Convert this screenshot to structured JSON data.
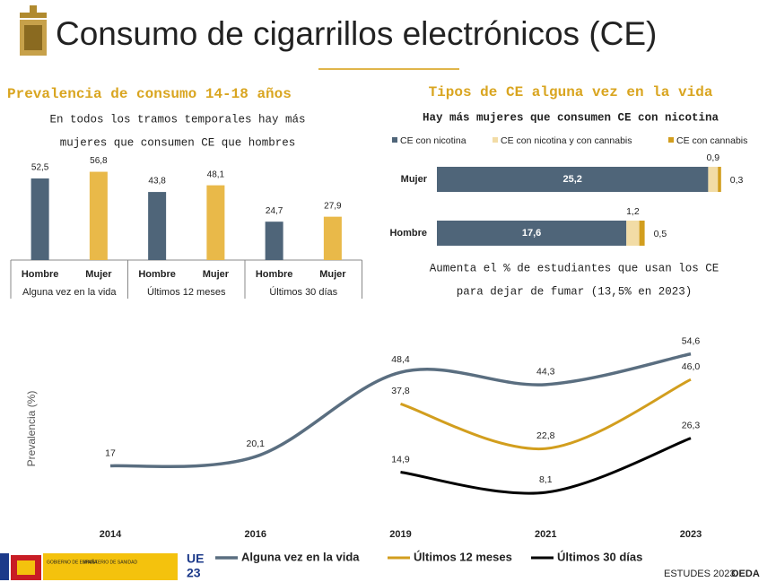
{
  "header": {
    "title": "Consumo de cigarrillos electrónicos (CE)"
  },
  "chart_data": [
    {
      "type": "bar",
      "title": "Prevalencia de consumo 14-18 años",
      "subtitle": [
        "En todos los tramos temporales hay más",
        "mujeres que consumen CE que hombres"
      ],
      "categories": [
        "Alguna vez en la vida",
        "Últimos 12 meses",
        "Últimos 30 días"
      ],
      "ylim": [
        0,
        60
      ],
      "series": [
        {
          "name": "Hombre",
          "color": "#4f6579",
          "values": [
            52.5,
            43.8,
            24.7
          ],
          "value_labels": [
            "52,5",
            "43,8",
            "24,7"
          ]
        },
        {
          "name": "Mujer",
          "color": "#e9b949",
          "values": [
            56.8,
            48.1,
            27.9
          ],
          "value_labels": [
            "56,8",
            "48,1",
            "27,9"
          ]
        }
      ]
    },
    {
      "type": "hstack",
      "title": "Tipos de CE alguna vez en la vida",
      "subtitle": "Hay más mujeres que consumen CE con nicotina",
      "categories": [
        "Mujer",
        "Hombre"
      ],
      "xlim": [
        0,
        27
      ],
      "series": [
        {
          "name": "CE con nicotina",
          "color": "#4f6579",
          "values": [
            25.2,
            17.6
          ],
          "value_labels": [
            "25,2",
            "17,6"
          ]
        },
        {
          "name": "CE con nicotina y con cannabis",
          "color": "#f2dca6",
          "values": [
            0.9,
            1.2
          ],
          "value_labels": [
            "0,9",
            "1,2"
          ]
        },
        {
          "name": "CE con cannabis",
          "color": "#d29e1e",
          "values": [
            0.3,
            0.5
          ],
          "value_labels": [
            "0,3",
            "0,5"
          ]
        }
      ],
      "annotation": [
        "Aumenta el % de estudiantes que usan los CE",
        "para dejar de fumar (13,5% en 2023)"
      ]
    },
    {
      "type": "line",
      "ylabel": "Prevalencia (%)",
      "categories": [
        "2014",
        "2016",
        "2019",
        "2021",
        "2023"
      ],
      "ylim": [
        0,
        59
      ],
      "series": [
        {
          "name": "Alguna vez en la vida",
          "color": "#5a6e80",
          "values": [
            17,
            20.1,
            48.4,
            44.3,
            54.6
          ],
          "value_labels": [
            "17",
            "20,1",
            "48,4",
            "44,3",
            "54,6"
          ]
        },
        {
          "name": "Últimos 12 meses",
          "color": "#d29e1e",
          "values": [
            null,
            null,
            37.8,
            22.8,
            46.0
          ],
          "value_labels": [
            null,
            null,
            "37,8",
            "22,8",
            "46,0"
          ]
        },
        {
          "name": "Últimos 30 días",
          "color": "#000000",
          "values": [
            null,
            null,
            14.9,
            8.1,
            26.3
          ],
          "value_labels": [
            null,
            null,
            "14,9",
            "8,1",
            "26,3"
          ]
        }
      ]
    }
  ],
  "footer": {
    "source": "ESTUDES 2023.",
    "org": "OEDA",
    "gov": "GOBIERNO DE ESPAÑA",
    "ministry": "MINISTERIO DE SANIDAD",
    "eu": [
      "UE",
      "23"
    ]
  }
}
